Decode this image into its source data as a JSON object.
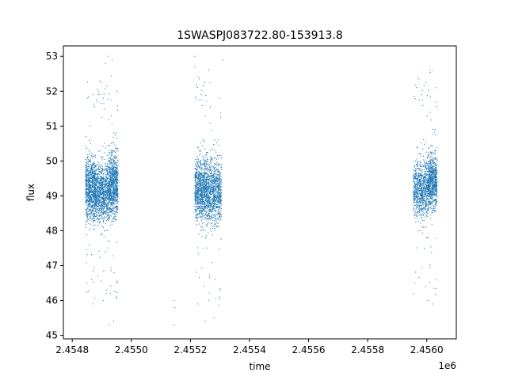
{
  "chart_data": {
    "type": "scatter",
    "title": "1SWASPJ083722.80-153913.8",
    "xlabel": "time",
    "ylabel": "flux",
    "x_offset_label": "1e6",
    "xlim": [
      2454770,
      2456100
    ],
    "ylim": [
      44.9,
      53.3
    ],
    "x_ticks": [
      2454800,
      2455000,
      2455200,
      2455400,
      2455600,
      2455800,
      2456000
    ],
    "x_tick_labels": [
      "2.4548",
      "2.4550",
      "2.4552",
      "2.4554",
      "2.4556",
      "2.4558",
      "2.4560"
    ],
    "y_ticks": [
      45,
      46,
      47,
      48,
      49,
      50,
      51,
      52,
      53
    ],
    "y_tick_labels": [
      "45",
      "46",
      "47",
      "48",
      "49",
      "50",
      "51",
      "52",
      "53"
    ],
    "grid": false,
    "legend": "none",
    "marker_color": "#1f77b4",
    "series": [
      {
        "clusters": [
          {
            "x_range": [
              2454845,
              2454880
            ],
            "y_center": 49.2,
            "y_spread": 0.65,
            "density": 1.0
          },
          {
            "x_range": [
              2454880,
              2454925
            ],
            "y_center": 49.1,
            "y_spread": 0.6,
            "density": 1.0
          },
          {
            "x_range": [
              2454925,
              2454955
            ],
            "y_center": 49.3,
            "y_spread": 0.65,
            "density": 0.9
          },
          {
            "x_range": [
              2455215,
              2455255
            ],
            "y_center": 49.2,
            "y_spread": 0.65,
            "density": 1.0
          },
          {
            "x_range": [
              2455255,
              2455305
            ],
            "y_center": 49.1,
            "y_spread": 0.65,
            "density": 1.0
          },
          {
            "x_range": [
              2455955,
              2456005
            ],
            "y_center": 49.2,
            "y_spread": 0.6,
            "density": 0.9
          },
          {
            "x_range": [
              2456005,
              2456035
            ],
            "y_center": 49.4,
            "y_spread": 0.55,
            "density": 0.8
          }
        ],
        "outliers": [
          [
            2454920,
            53.0
          ],
          [
            2454935,
            52.9
          ],
          [
            2454912,
            52.8
          ],
          [
            2454925,
            45.3
          ],
          [
            2454940,
            45.4
          ],
          [
            2454905,
            46.0
          ],
          [
            2454915,
            46.2
          ],
          [
            2454950,
            46.1
          ],
          [
            2454870,
            45.9
          ],
          [
            2454850,
            46.5
          ],
          [
            2455145,
            46.0
          ],
          [
            2455147,
            45.8
          ],
          [
            2455145,
            45.3
          ],
          [
            2455215,
            53.0
          ],
          [
            2455215,
            52.7
          ],
          [
            2455310,
            52.9
          ],
          [
            2455262,
            52.6
          ],
          [
            2455280,
            45.5
          ],
          [
            2455250,
            45.4
          ],
          [
            2455225,
            45.9
          ],
          [
            2455298,
            46.1
          ],
          [
            2456010,
            52.6
          ],
          [
            2456018,
            52.6
          ],
          [
            2456020,
            45.9
          ],
          [
            2456003,
            46.0
          ],
          [
            2455955,
            46.2
          ],
          [
            2455960,
            46.5
          ]
        ]
      }
    ]
  }
}
